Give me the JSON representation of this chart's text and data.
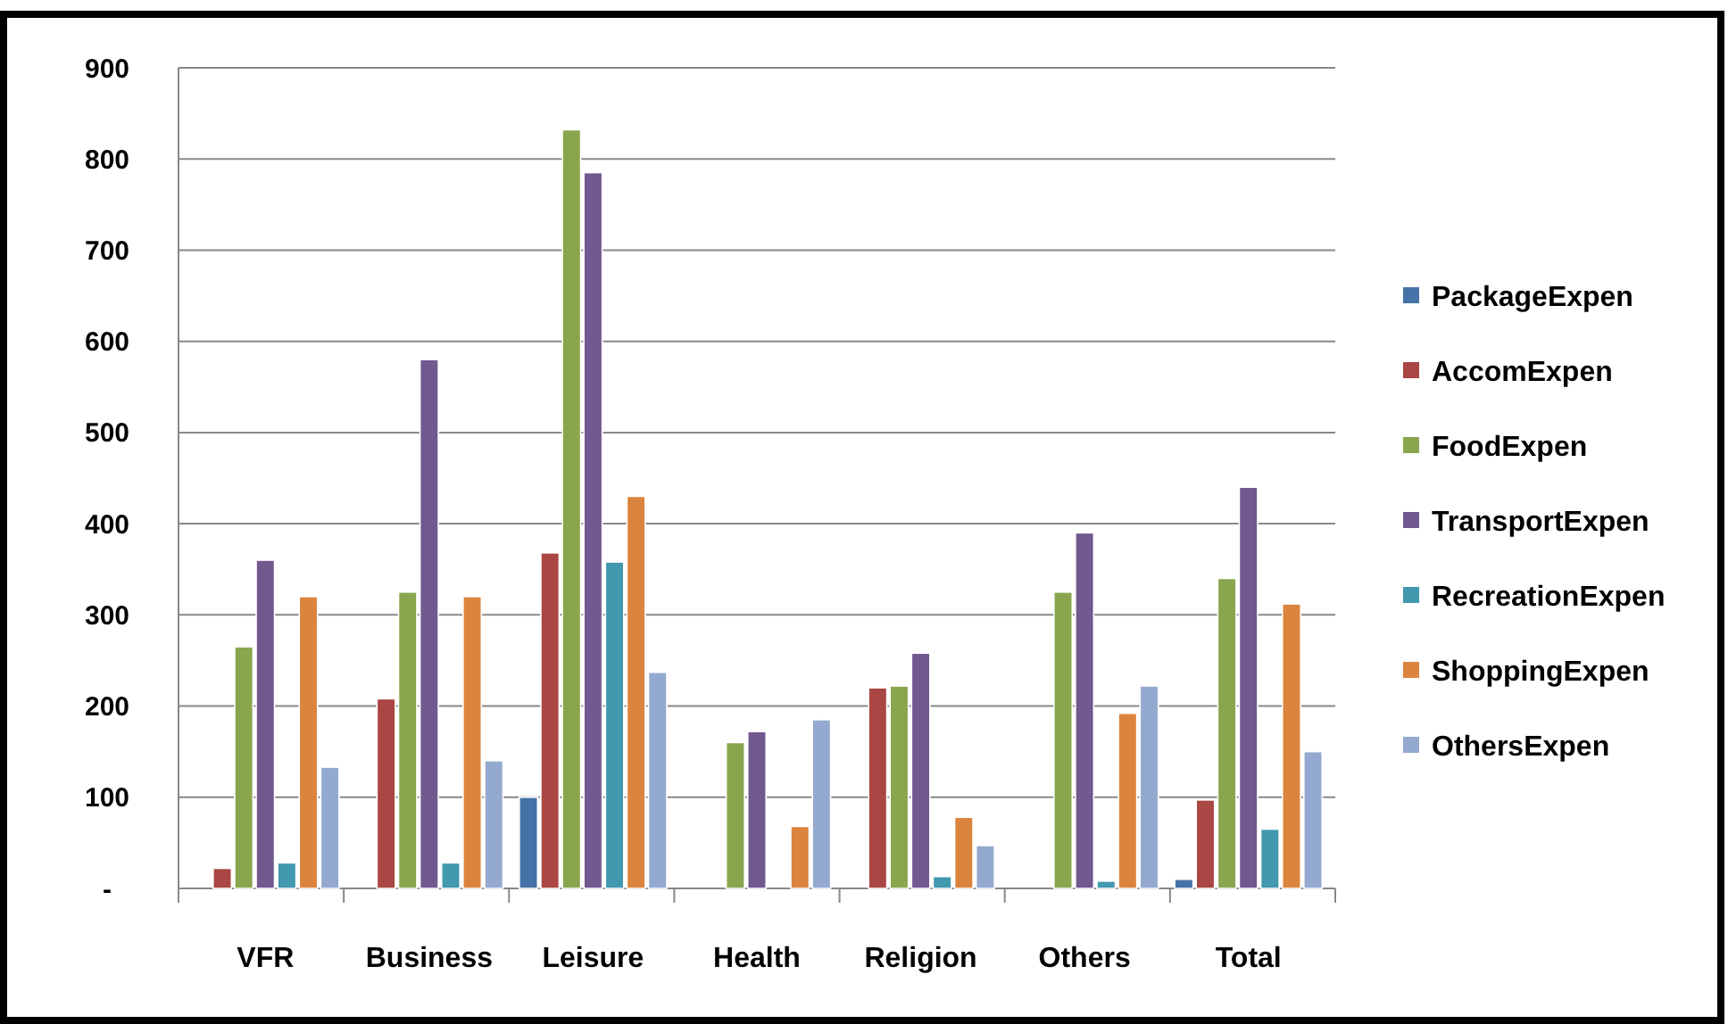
{
  "chart_data": {
    "type": "bar",
    "categories": [
      "VFR",
      "Business",
      "Leisure",
      "Health",
      "Religion",
      "Others",
      "Total"
    ],
    "series": [
      {
        "name": "PackageExpen",
        "color": "#4572a7",
        "values": [
          0,
          0,
          100,
          0,
          0,
          0,
          10
        ]
      },
      {
        "name": "AccomExpen",
        "color": "#aa4643",
        "values": [
          22,
          208,
          368,
          0,
          220,
          0,
          97
        ]
      },
      {
        "name": "FoodExpen",
        "color": "#89a54e",
        "values": [
          265,
          325,
          832,
          160,
          222,
          325,
          340
        ]
      },
      {
        "name": "TransportExpen",
        "color": "#71588f",
        "values": [
          360,
          580,
          785,
          172,
          258,
          390,
          440
        ]
      },
      {
        "name": "RecreationExpen",
        "color": "#4198af",
        "values": [
          28,
          28,
          358,
          0,
          13,
          8,
          65
        ]
      },
      {
        "name": "ShoppingExpen",
        "color": "#db843d",
        "values": [
          320,
          320,
          430,
          68,
          78,
          192,
          312
        ]
      },
      {
        "name": "OthersExpen",
        "color": "#93a9cf",
        "values": [
          133,
          140,
          237,
          185,
          47,
          222,
          150
        ]
      }
    ],
    "ylim": [
      0,
      900
    ],
    "yticks": [
      {
        "value": 0,
        "label": "-"
      },
      100,
      200,
      300,
      400,
      500,
      600,
      700,
      800,
      900
    ],
    "grid": "y",
    "legend": "right"
  }
}
